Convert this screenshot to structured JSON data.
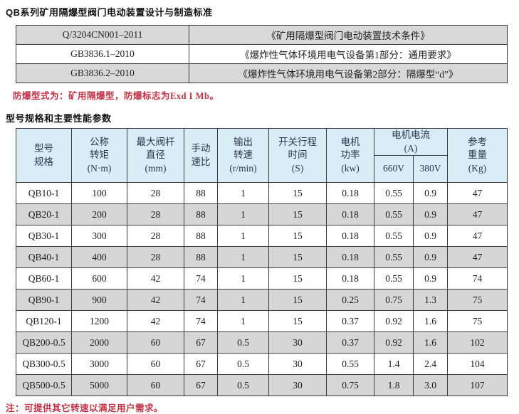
{
  "page": {
    "title": "QB系列矿用隔爆型阀门电动装置设计与制造标准",
    "explosion_note": "防爆型式为：矿用隔爆型，防爆标志为Exd I  Mb。",
    "section_heading": "型号规格和主要性能参数",
    "bottom_note": "注：可提供其它转速以满足用户需求。"
  },
  "standards_table": {
    "rows": [
      {
        "code": "Q/3204CN001–2011",
        "title": "《矿用隔爆型阀门电动装置技术条件》"
      },
      {
        "code": "GB3836.1–2010",
        "title": "《爆炸性气体环境用电气设备第1部分：通用要求》"
      },
      {
        "code": "GB3836.2–2010",
        "title": "《爆炸性气体环境用电气设备第2部分：隔爆型“d”》"
      }
    ]
  },
  "spec_table": {
    "headers": {
      "model": "型号\n规格",
      "torque": "公称\n转矩\n(N·m)",
      "stem_diameter": "最大阀杆\n直径\n(mm)",
      "manual_ratio": "手动\n速比",
      "output_speed": "输出\n转速\n(r/min)",
      "travel_time": "开关行程\n时间\n(S)",
      "motor_power": "电机\n功率\n(kw)",
      "motor_current": "电机电流\n(A)",
      "v660": "660V",
      "v380": "380V",
      "weight": "参考\n重量\n(Kg)"
    },
    "column_keys": [
      "model",
      "torque",
      "stem-diameter",
      "manual-ratio",
      "output-speed",
      "travel-time",
      "motor-power",
      "current-660v",
      "current-380v",
      "weight"
    ],
    "rows": [
      [
        "QB10-1",
        "100",
        "28",
        "88",
        "1",
        "15",
        "0.18",
        "0.55",
        "0.9",
        "47"
      ],
      [
        "QB20-1",
        "200",
        "28",
        "88",
        "1",
        "15",
        "0.18",
        "0.55",
        "0.9",
        "47"
      ],
      [
        "QB30-1",
        "300",
        "28",
        "88",
        "1",
        "15",
        "0.18",
        "0.55",
        "0.9",
        "47"
      ],
      [
        "QB40-1",
        "400",
        "28",
        "88",
        "1",
        "15",
        "0.18",
        "0.55",
        "0.9",
        "47"
      ],
      [
        "QB60-1",
        "600",
        "42",
        "74",
        "1",
        "15",
        "0.18",
        "0.55",
        "0.9",
        "74"
      ],
      [
        "QB90-1",
        "900",
        "42",
        "74",
        "1",
        "15",
        "0.25",
        "0.75",
        "1.3",
        "75"
      ],
      [
        "QB120-1",
        "1200",
        "42",
        "74",
        "1",
        "15",
        "0.37",
        "0.92",
        "1.6",
        "75"
      ],
      [
        "QB200-0.5",
        "2000",
        "60",
        "67",
        "0.5",
        "30",
        "0.37",
        "0.92",
        "1.6",
        "102"
      ],
      [
        "QB300-0.5",
        "3000",
        "60",
        "67",
        "0.5",
        "30",
        "0.55",
        "1.4",
        "2.4",
        "104"
      ],
      [
        "QB500-0.5",
        "5000",
        "60",
        "67",
        "0.5",
        "30",
        "0.75",
        "1.8",
        "3.0",
        "107"
      ]
    ]
  },
  "colors": {
    "header_bg": "#d8edf5",
    "header_text": "#27394f",
    "row_stripe": "#d6d6d6",
    "standards_row_gray": "#d9d9d9",
    "accent_red": "#c03245",
    "border": "#3a3a3a"
  }
}
